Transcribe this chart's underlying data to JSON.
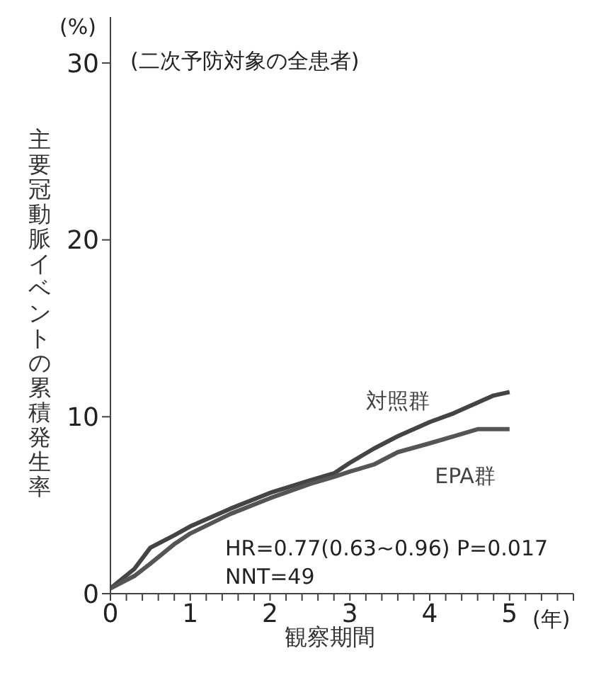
{
  "chart_data": {
    "type": "line",
    "title": "(二次予防対象の全患者)",
    "xlabel": "観察期間",
    "ylabel": "主要冠動脈イベントの累積発生率",
    "x": [
      0,
      0.3,
      0.5,
      0.8,
      1.0,
      1.5,
      2.0,
      2.5,
      2.8,
      3.0,
      3.3,
      3.6,
      4.0,
      4.3,
      4.6,
      4.8,
      5.0
    ],
    "series": [
      {
        "name": "対照群",
        "color": "#444444",
        "values": [
          0.3,
          1.4,
          2.6,
          3.3,
          3.8,
          4.8,
          5.7,
          6.4,
          6.8,
          7.4,
          8.2,
          8.9,
          9.7,
          10.2,
          10.8,
          11.2,
          11.4
        ]
      },
      {
        "name": "EPA群",
        "color": "#555555",
        "values": [
          0.3,
          1.0,
          1.7,
          2.8,
          3.4,
          4.5,
          5.4,
          6.2,
          6.6,
          6.9,
          7.3,
          8.0,
          8.5,
          8.9,
          9.3,
          9.3,
          9.3
        ]
      }
    ],
    "xlim": [
      0,
      5.8
    ],
    "xticks": [
      0,
      {
        "value": 0.2,
        "label": null
      },
      {
        "value": 0.4,
        "label": null
      },
      {
        "value": 0.6,
        "label": null
      },
      {
        "value": 0.8,
        "label": null
      },
      1,
      {
        "value": 1.2,
        "label": null
      },
      {
        "value": 1.4,
        "label": null
      },
      {
        "value": 1.6,
        "label": null
      },
      {
        "value": 1.8,
        "label": null
      },
      2,
      {
        "value": 2.2,
        "label": null
      },
      {
        "value": 2.4,
        "label": null
      },
      {
        "value": 2.6,
        "label": null
      },
      {
        "value": 2.8,
        "label": null
      },
      3,
      {
        "value": 3.2,
        "label": null
      },
      {
        "value": 3.4,
        "label": null
      },
      {
        "value": 3.6,
        "label": null
      },
      {
        "value": 3.8,
        "label": null
      },
      4,
      {
        "value": 4.2,
        "label": null
      },
      {
        "value": 4.4,
        "label": null
      },
      {
        "value": 4.6,
        "label": null
      },
      {
        "value": 4.8,
        "label": null
      },
      5,
      {
        "value": 5.2,
        "label": null
      },
      {
        "value": 5.4,
        "label": null
      },
      {
        "value": 5.6,
        "label": null
      },
      {
        "value": 5.8,
        "label": null
      }
    ],
    "ylim": [
      0,
      32.6
    ],
    "yticks": [
      0,
      10,
      20,
      30
    ],
    "annotations": [
      "(%)",
      "(年)",
      "HR=0.77(0.63~0.96) P=0.017",
      "NNT=49"
    ],
    "grid": false,
    "legend": false,
    "marker": "none",
    "line_style": "solid"
  }
}
